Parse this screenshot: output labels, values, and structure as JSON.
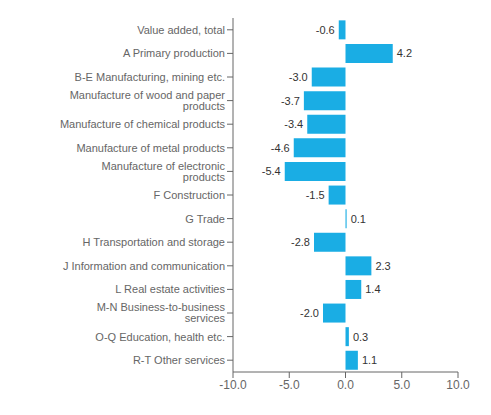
{
  "chart_data": {
    "type": "bar",
    "orientation": "horizontal",
    "categories": [
      "Value added, total",
      "A Primary production",
      "B-E Manufacturing, mining etc.",
      "Manufacture of wood and paper products",
      "Manufacture of chemical products",
      "Manufacture of metal products",
      "Manufacture of electronic products",
      "F Construction",
      "G Trade",
      "H Transportation and storage",
      "J Information and communication",
      "L Real estate activities",
      "M-N Business-to-business services",
      "O-Q Education, health etc.",
      "R-T Other services"
    ],
    "values": [
      -0.6,
      4.2,
      -3.0,
      -3.7,
      -3.4,
      -4.6,
      -5.4,
      -1.5,
      0.1,
      -2.8,
      2.3,
      1.4,
      -2.0,
      0.3,
      1.1
    ],
    "value_labels": [
      "-0.6",
      "4.2",
      "-3.0",
      "-3.7",
      "-3.4",
      "-4.6",
      "-5.4",
      "-1.5",
      "0.1",
      "-2.8",
      "2.3",
      "1.4",
      "-2.0",
      "0.3",
      "1.1"
    ],
    "data_labels": true,
    "color": "#1aade4",
    "xlim": [
      -10.0,
      10.0
    ],
    "xticks": [
      {
        "value": -10.0,
        "label": "-10.0"
      },
      {
        "value": -5.0,
        "label": "-5.0"
      },
      {
        "value": 0.0,
        "label": "0.0"
      },
      {
        "value": 5.0,
        "label": "5.0"
      },
      {
        "value": 10.0,
        "label": "10.0"
      }
    ],
    "grid": false
  }
}
